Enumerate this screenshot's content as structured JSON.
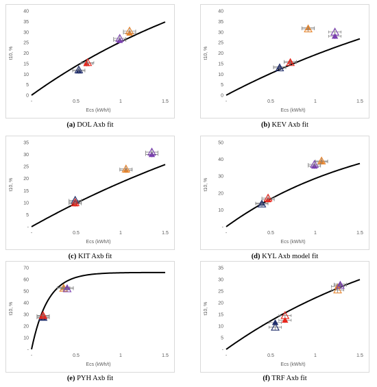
{
  "chart_data": [
    {
      "type": "scatter",
      "caption_letter": "(a)",
      "caption_text": "DOL Axb fit",
      "xlabel": "Ecs (kWh/t)",
      "ylabel": "t10, %",
      "xlim": [
        0,
        1.5
      ],
      "ylim": [
        0,
        40
      ],
      "x_ticks": [
        "-",
        "0.5",
        "1",
        "1.5"
      ],
      "y_ticks": [
        "0",
        "5",
        "10",
        "15",
        "20",
        "25",
        "30",
        "35",
        "40"
      ],
      "fit_curve": {
        "A": 80,
        "b": 0.38
      },
      "points": [
        {
          "x": 0.53,
          "y": 11.5,
          "color": "navy",
          "shape": "filled-triangle"
        },
        {
          "x": 0.53,
          "y": 12,
          "color": "navy",
          "shape": "open-triangle"
        },
        {
          "x": 0.62,
          "y": 15,
          "color": "red",
          "shape": "filled-triangle"
        },
        {
          "x": 0.63,
          "y": 15.5,
          "color": "red",
          "shape": "open-triangle"
        },
        {
          "x": 1.1,
          "y": 29.5,
          "color": "orange",
          "shape": "filled-triangle"
        },
        {
          "x": 1.1,
          "y": 30.5,
          "color": "orange",
          "shape": "open-triangle"
        },
        {
          "x": 0.99,
          "y": 26,
          "color": "purple",
          "shape": "filled-triangle"
        },
        {
          "x": 0.99,
          "y": 27,
          "color": "purple",
          "shape": "open-triangle"
        }
      ]
    },
    {
      "type": "scatter",
      "caption_letter": "(b)",
      "caption_text": "KEV Axb fit",
      "xlabel": "Ecs (kWh/t)",
      "ylabel": "t10, %",
      "xlim": [
        0,
        1.5
      ],
      "ylim": [
        0,
        40
      ],
      "x_ticks": [
        "-",
        "0.5",
        "1",
        "1.5"
      ],
      "y_ticks": [
        "0",
        "5",
        "10",
        "15",
        "20",
        "25",
        "30",
        "35",
        "40"
      ],
      "fit_curve": {
        "A": 72,
        "b": 0.31
      },
      "points": [
        {
          "x": 0.6,
          "y": 13.5,
          "color": "navy",
          "shape": "filled-triangle"
        },
        {
          "x": 0.6,
          "y": 13,
          "color": "navy",
          "shape": "open-triangle"
        },
        {
          "x": 0.72,
          "y": 16,
          "color": "red",
          "shape": "filled-triangle"
        },
        {
          "x": 0.72,
          "y": 15.5,
          "color": "red",
          "shape": "open-triangle"
        },
        {
          "x": 0.92,
          "y": 32,
          "color": "orange",
          "shape": "filled-triangle"
        },
        {
          "x": 0.92,
          "y": 31.5,
          "color": "orange",
          "shape": "open-triangle"
        },
        {
          "x": 1.22,
          "y": 28,
          "color": "purple",
          "shape": "filled-triangle"
        },
        {
          "x": 1.22,
          "y": 30,
          "color": "purple",
          "shape": "open-triangle"
        }
      ]
    },
    {
      "type": "scatter",
      "caption_letter": "(c)",
      "caption_text": "KIT Axb fit",
      "xlabel": "Ecs (kWh/t)",
      "ylabel": "t10, %",
      "xlim": [
        0,
        1.5
      ],
      "ylim": [
        0,
        35
      ],
      "x_ticks": [
        "-",
        "0.5",
        "1",
        "1.5"
      ],
      "y_ticks": [
        "-",
        "5",
        "10",
        "15",
        "20",
        "25",
        "30",
        "35"
      ],
      "fit_curve": {
        "A": 80,
        "b": 0.26
      },
      "points": [
        {
          "x": 0.49,
          "y": 10.5,
          "color": "navy",
          "shape": "filled-triangle"
        },
        {
          "x": 0.49,
          "y": 11,
          "color": "navy",
          "shape": "open-triangle"
        },
        {
          "x": 0.49,
          "y": 9.5,
          "color": "red",
          "shape": "filled-triangle"
        },
        {
          "x": 0.49,
          "y": 10,
          "color": "red",
          "shape": "open-triangle"
        },
        {
          "x": 1.06,
          "y": 23.5,
          "color": "orange",
          "shape": "filled-triangle"
        },
        {
          "x": 1.06,
          "y": 24,
          "color": "orange",
          "shape": "open-triangle"
        },
        {
          "x": 1.35,
          "y": 30,
          "color": "purple",
          "shape": "filled-triangle"
        },
        {
          "x": 1.35,
          "y": 31,
          "color": "purple",
          "shape": "open-triangle"
        }
      ]
    },
    {
      "type": "scatter",
      "caption_letter": "(d)",
      "caption_text": "KYL Axb model fit",
      "xlabel": "Ecs (kWh/t)",
      "ylabel": "t10, %",
      "xlim": [
        0,
        1.5
      ],
      "ylim": [
        0,
        50
      ],
      "x_ticks": [
        "-",
        "0.5",
        "1",
        "1.5"
      ],
      "y_ticks": [
        "-",
        "10",
        "20",
        "30",
        "40",
        "50"
      ],
      "fit_curve": {
        "A": 62,
        "b": 0.62
      },
      "points": [
        {
          "x": 0.4,
          "y": 14,
          "color": "navy",
          "shape": "filled-triangle"
        },
        {
          "x": 0.4,
          "y": 13.5,
          "color": "navy",
          "shape": "open-triangle"
        },
        {
          "x": 0.47,
          "y": 16,
          "color": "red",
          "shape": "filled-triangle"
        },
        {
          "x": 0.47,
          "y": 17,
          "color": "red",
          "shape": "open-triangle"
        },
        {
          "x": 1.07,
          "y": 38.5,
          "color": "orange",
          "shape": "filled-triangle"
        },
        {
          "x": 1.07,
          "y": 39,
          "color": "orange",
          "shape": "open-triangle"
        },
        {
          "x": 0.99,
          "y": 36,
          "color": "purple",
          "shape": "filled-triangle"
        },
        {
          "x": 0.99,
          "y": 37,
          "color": "purple",
          "shape": "open-triangle"
        }
      ]
    },
    {
      "type": "scatter",
      "caption_letter": "(e)",
      "caption_text": "PYH Axb fit",
      "xlabel": "Ecs (kWh/t)",
      "ylabel": "t10, %",
      "xlim": [
        0,
        1.5
      ],
      "ylim": [
        0,
        70
      ],
      "x_ticks": [
        "-",
        "0.5",
        "1",
        "1.5"
      ],
      "y_ticks": [
        "-",
        "10",
        "20",
        "30",
        "40",
        "50",
        "60",
        "70"
      ],
      "fit_curve": {
        "A": 66,
        "b": 5.5
      },
      "points": [
        {
          "x": 0.13,
          "y": 27,
          "color": "navy",
          "shape": "filled-triangle"
        },
        {
          "x": 0.13,
          "y": 27.5,
          "color": "navy",
          "shape": "open-triangle"
        },
        {
          "x": 0.13,
          "y": 28.5,
          "color": "red",
          "shape": "filled-triangle"
        },
        {
          "x": 0.13,
          "y": 29,
          "color": "red",
          "shape": "open-triangle"
        },
        {
          "x": 0.36,
          "y": 53,
          "color": "orange",
          "shape": "filled-triangle"
        },
        {
          "x": 0.36,
          "y": 52.5,
          "color": "orange",
          "shape": "open-triangle"
        },
        {
          "x": 0.4,
          "y": 53,
          "color": "purple",
          "shape": "filled-triangle"
        },
        {
          "x": 0.4,
          "y": 52,
          "color": "purple",
          "shape": "open-triangle"
        }
      ]
    },
    {
      "type": "scatter",
      "caption_letter": "(f)",
      "caption_text": "TRF Axb fit",
      "xlabel": "Ecs (kWh/t)",
      "ylabel": "t10, %",
      "xlim": [
        0,
        1.5
      ],
      "ylim": [
        0,
        35
      ],
      "x_ticks": [
        "-",
        "0.5",
        "1",
        "1.5"
      ],
      "y_ticks": [
        "-",
        "5",
        "10",
        "15",
        "20",
        "25",
        "30",
        "35"
      ],
      "fit_curve": {
        "A": 62,
        "b": 0.44
      },
      "points": [
        {
          "x": 0.55,
          "y": 11.5,
          "color": "navy",
          "shape": "filled-triangle"
        },
        {
          "x": 0.55,
          "y": 9.5,
          "color": "navy",
          "shape": "open-triangle"
        },
        {
          "x": 0.66,
          "y": 12.5,
          "color": "red",
          "shape": "filled-triangle"
        },
        {
          "x": 0.66,
          "y": 14.5,
          "color": "red",
          "shape": "open-triangle"
        },
        {
          "x": 1.25,
          "y": 27,
          "color": "orange",
          "shape": "filled-triangle"
        },
        {
          "x": 1.25,
          "y": 25.5,
          "color": "orange",
          "shape": "open-triangle"
        },
        {
          "x": 1.28,
          "y": 28,
          "color": "purple",
          "shape": "filled-triangle"
        },
        {
          "x": 1.28,
          "y": 27.5,
          "color": "purple",
          "shape": "open-triangle"
        }
      ]
    }
  ],
  "colors": {
    "navy": "#1f2d6b",
    "red": "#e8261c",
    "orange": "#e8862e",
    "purple": "#7a3fb0",
    "curve": "#000000",
    "axis": "#bfbfbf",
    "text": "#595959"
  }
}
